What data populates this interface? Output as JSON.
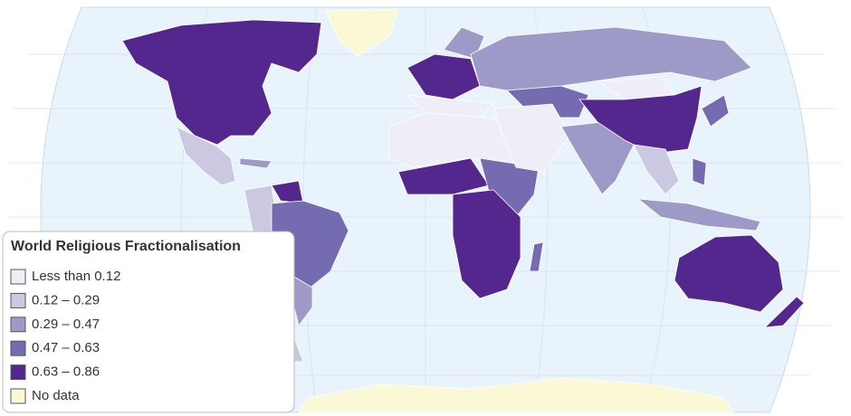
{
  "legend": {
    "title": "World Religious Fractionalisation",
    "items": [
      {
        "label": "Less than 0.12",
        "color": "#efedf5"
      },
      {
        "label": "0.12 – 0.29",
        "color": "#cbc9e2"
      },
      {
        "label": "0.29 – 0.47",
        "color": "#9e9ac8"
      },
      {
        "label": "0.47 – 0.63",
        "color": "#756bb1"
      },
      {
        "label": "0.63 – 0.86",
        "color": "#54278f"
      },
      {
        "label": "No data",
        "color": "#fbf8d6"
      }
    ]
  }
}
